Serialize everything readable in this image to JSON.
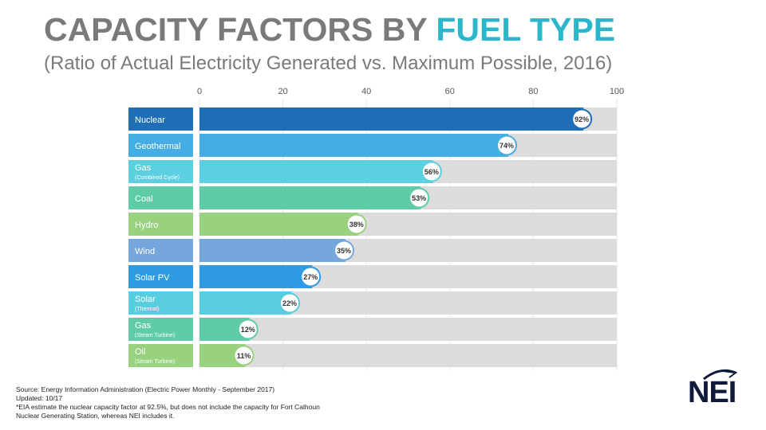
{
  "header": {
    "title_main": "CAPACITY FACTORS BY ",
    "title_accent": "FUEL TYPE",
    "subtitle": "(Ratio of Actual Electricity Generated vs. Maximum Possible, 2016)"
  },
  "chart_data": {
    "type": "bar",
    "orientation": "horizontal",
    "title": "CAPACITY FACTORS BY FUEL TYPE",
    "subtitle": "(Ratio of Actual Electricity Generated vs. Maximum Possible, 2016)",
    "xlim": [
      0,
      100
    ],
    "x_ticks": [
      "0",
      "20",
      "40",
      "60",
      "80",
      "100"
    ],
    "tick_values": [
      0,
      20,
      40,
      60,
      80,
      100
    ],
    "grid": true,
    "categories": [
      {
        "name": "Nuclear",
        "sub": "",
        "value": 92,
        "label": "92%",
        "color": "#1f6fb8"
      },
      {
        "name": "Geothermal",
        "sub": "",
        "value": 74,
        "label": "74%",
        "color": "#45ade3"
      },
      {
        "name": "Gas",
        "sub": "(Combined Cycle)",
        "value": 56,
        "label": "56%",
        "color": "#5ccfe0"
      },
      {
        "name": "Coal",
        "sub": "",
        "value": 53,
        "label": "53%",
        "color": "#5ecda6"
      },
      {
        "name": "Hydro",
        "sub": "",
        "value": 38,
        "label": "38%",
        "color": "#98d27f"
      },
      {
        "name": "Wind",
        "sub": "",
        "value": 35,
        "label": "35%",
        "color": "#76a7dc"
      },
      {
        "name": "Solar PV",
        "sub": "",
        "value": 27,
        "label": "27%",
        "color": "#2e9be3"
      },
      {
        "name": "Solar",
        "sub": "(Thermal)",
        "value": 22,
        "label": "22%",
        "color": "#59cde0"
      },
      {
        "name": "Gas",
        "sub": "(Steam Turbine)",
        "value": 12,
        "label": "12%",
        "color": "#5ecda6"
      },
      {
        "name": "Oil",
        "sub": "(Steam Turbine)",
        "value": 11,
        "label": "11%",
        "color": "#98d27f"
      }
    ],
    "track_color": "#dcdcdc"
  },
  "footer": {
    "source": "Source: Energy Information Administration (Electric Power Monthly - September 2017)",
    "updated": "Updated: 10/17",
    "note_line1": "*EIA estimate the nuclear capacity factor at 92.5%, but does not include the capacity for Fort Calhoun",
    "note_line2": "Nuclear Generating Station, whereas NEI includes it.",
    "logo_text": "NEI"
  }
}
